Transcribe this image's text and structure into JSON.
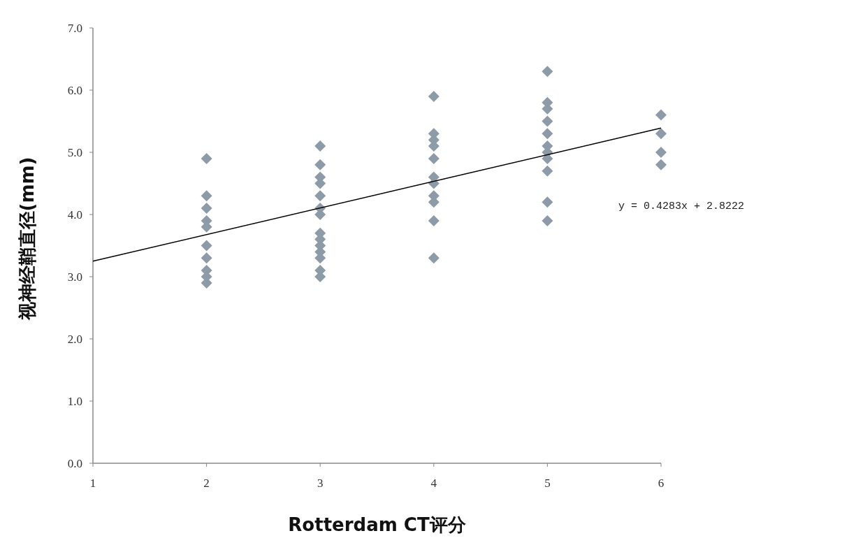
{
  "chart_data": {
    "type": "scatter",
    "xlabel": "Rotterdam CT评分",
    "ylabel": "视神经鞘直径(mm)",
    "xlim": [
      1,
      6
    ],
    "ylim": [
      0,
      7
    ],
    "xticks": [
      1,
      2,
      3,
      4,
      5,
      6
    ],
    "yticks": [
      {
        "value": 0,
        "label": "0.0"
      },
      {
        "value": 1,
        "label": "1.0"
      },
      {
        "value": 2,
        "label": "2.0"
      },
      {
        "value": 3,
        "label": "3.0"
      },
      {
        "value": 4,
        "label": "4.0"
      },
      {
        "value": 5,
        "label": "5.0"
      },
      {
        "value": 6,
        "label": "6.0"
      },
      {
        "value": 7,
        "label": "7.0"
      }
    ],
    "marker": "diamond",
    "series": [
      {
        "color": "#8d9ba8",
        "x": [
          2,
          2,
          2,
          2,
          2,
          2,
          2,
          2,
          2,
          2,
          3,
          3,
          3,
          3,
          3,
          3,
          3,
          3,
          3,
          3,
          3,
          3,
          3,
          3,
          4,
          4,
          4,
          4,
          4,
          4,
          4,
          4,
          4,
          4,
          4,
          5,
          5,
          5,
          5,
          5,
          5,
          5,
          5,
          5,
          5,
          5,
          6,
          6,
          6,
          6
        ],
        "values": [
          4.9,
          4.3,
          4.1,
          3.9,
          3.8,
          3.5,
          3.3,
          3.1,
          3.0,
          2.9,
          5.1,
          4.8,
          4.6,
          4.5,
          4.3,
          4.1,
          4.0,
          3.7,
          3.6,
          3.5,
          3.4,
          3.3,
          3.1,
          3.0,
          5.9,
          5.3,
          5.2,
          5.1,
          4.9,
          4.6,
          4.5,
          4.3,
          4.2,
          3.9,
          3.3,
          6.3,
          5.8,
          5.7,
          5.5,
          5.3,
          5.1,
          5.0,
          4.9,
          4.7,
          4.2,
          3.9,
          5.6,
          5.3,
          5.0,
          4.8
        ]
      },
      {
        "type": "line",
        "color": "#000000",
        "marker": "none",
        "line_style": "solid",
        "x": [
          1,
          6
        ],
        "values": [
          3.25,
          5.39
        ]
      }
    ],
    "annotations": [
      "y = 0.4283x + 2.8222"
    ]
  }
}
